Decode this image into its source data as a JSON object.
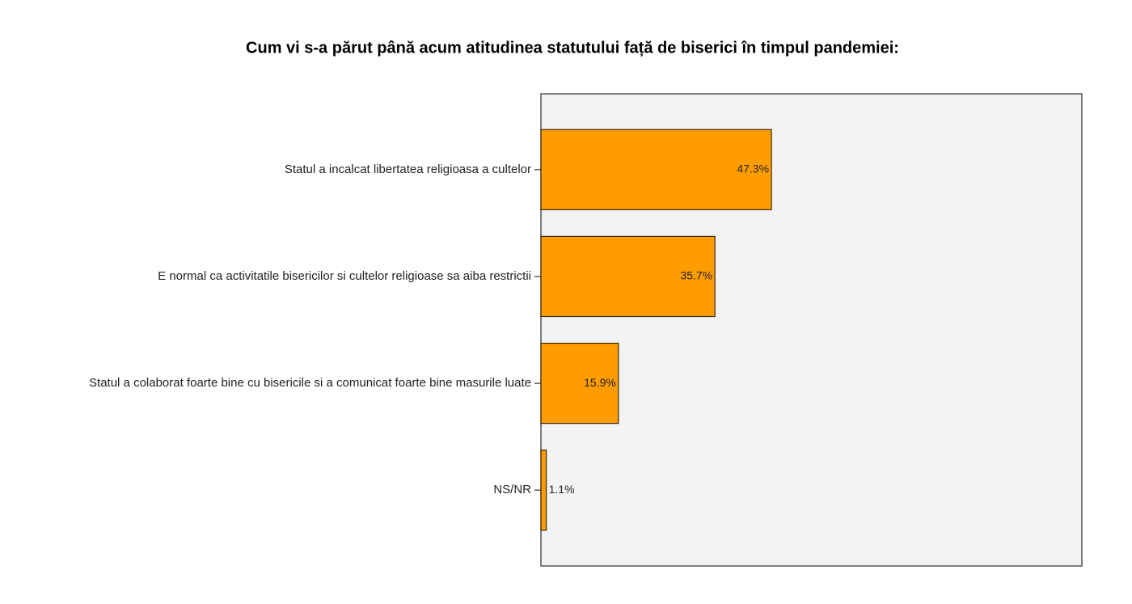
{
  "chart_data": {
    "type": "bar",
    "orientation": "horizontal",
    "title": "Cum vi s-a părut până acum atitudinea statutului față de biserici în timpul pandemiei:",
    "categories": [
      "Statul a incalcat libertatea religioasa a cultelor",
      "E normal ca activitatile bisericilor si cultelor religioase sa aiba restrictii",
      "Statul a colaborat foarte bine cu bisericile si a comunicat foarte bine masurile luate",
      "NS/NR"
    ],
    "values": [
      47.3,
      35.7,
      15.9,
      1.1
    ],
    "value_labels": [
      "47.3%",
      "35.7%",
      "15.9%",
      "1.1%"
    ],
    "color": "#ff9c00",
    "xlim": [
      0,
      111
    ]
  }
}
